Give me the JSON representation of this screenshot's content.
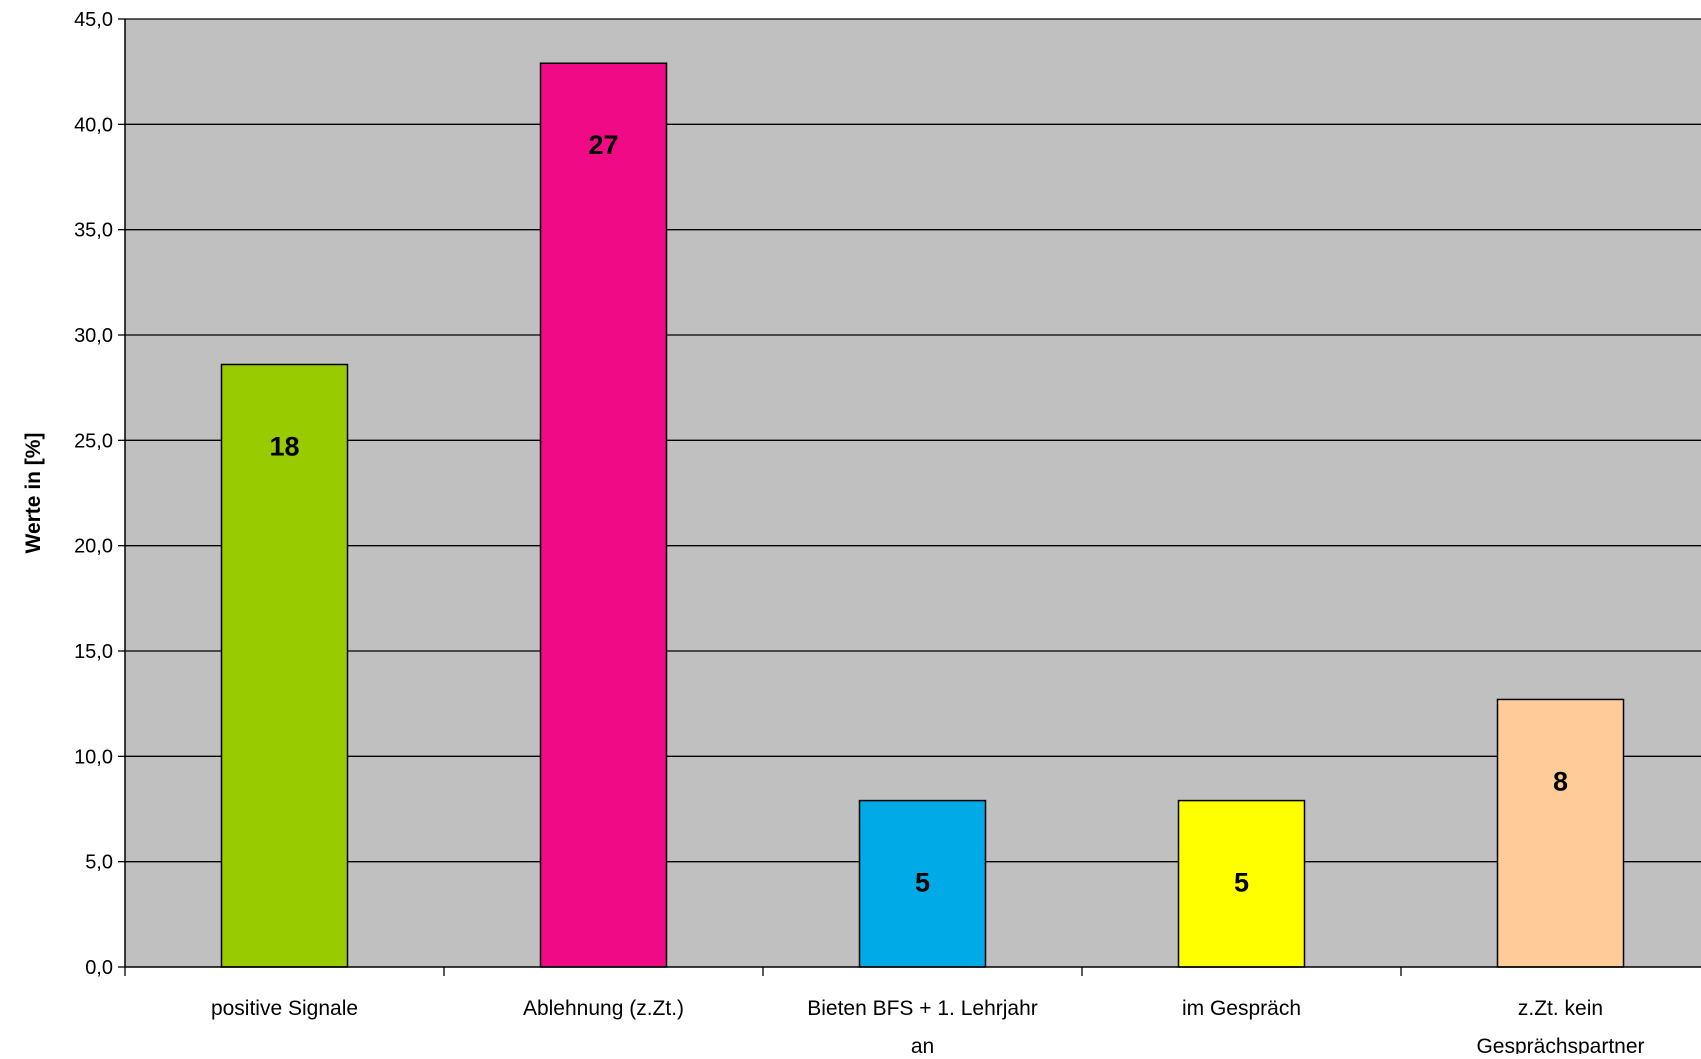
{
  "chart_data": {
    "type": "bar",
    "title": "",
    "xlabel": "",
    "ylabel": "Werte in [%]",
    "ylim": [
      0,
      45
    ],
    "y_ticks": [
      "0,0",
      "5,0",
      "10,0",
      "15,0",
      "20,0",
      "25,0",
      "30,0",
      "35,0",
      "40,0",
      "45,0"
    ],
    "grid": true,
    "legend": "none",
    "categories": [
      [
        "positive Signale"
      ],
      [
        "Ablehnung (z.Zt.)"
      ],
      [
        "Bieten BFS + 1. Lehrjahr",
        "an"
      ],
      [
        "im Gespräch"
      ],
      [
        "z.Zt. kein",
        "Gesprächspartner"
      ]
    ],
    "values": [
      28.6,
      42.9,
      7.9,
      7.9,
      12.7
    ],
    "data_labels": [
      "18",
      "27",
      "5",
      "5",
      "8"
    ],
    "colors": {
      "bars": [
        "#99cc00",
        "#f00a85",
        "#00aae6",
        "#ffff00",
        "#ffcc99"
      ],
      "plot_background": "#c0c0c0",
      "gridline": "#000000",
      "axis": "#000000"
    }
  }
}
